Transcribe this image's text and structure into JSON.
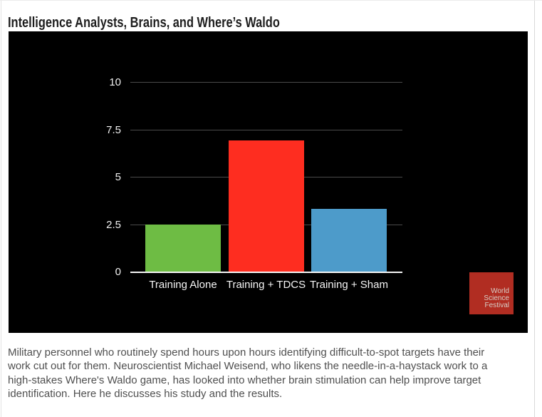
{
  "page": {
    "title": "Intelligence Analysts, Brains, and Where’s Waldo",
    "paragraph_lines": [
      "Military personnel who routinely spend hours upon hours identifying difficult-to-spot targets have their",
      "work cut out for them. Neuroscientist Michael Weisend, who likens the needle-in-a-haystack work to a",
      "high-stakes Where's Waldo game, has looked into whether brain stimulation can help improve target",
      "identification. Here he discusses his study and the results."
    ]
  },
  "chart_data": {
    "type": "bar",
    "title": "",
    "xlabel": "",
    "ylabel": "",
    "categories": [
      "Training Alone",
      "Training + TDCS",
      "Training + Sham"
    ],
    "values": [
      2.5,
      6.9,
      3.3
    ],
    "bar_colors": [
      "#6ebc44",
      "#fe2d20",
      "#4d9bca"
    ],
    "ytick_labels": [
      "0",
      "2.5",
      "5",
      "7.5",
      "10"
    ],
    "yticks": [
      0,
      2.5,
      5,
      7.5,
      10
    ],
    "ylim": [
      0,
      10
    ],
    "grid": true,
    "legend": false,
    "background_color": "#000000",
    "gridline_color": "#4a4a4a",
    "axis_color": "#f5f5f5",
    "tick_text_color": "#f0f0f0"
  },
  "logo": {
    "lines": [
      "World",
      "Science",
      "Festival"
    ],
    "background_color": "#b12d22",
    "text_color": "#d8cfc8"
  }
}
